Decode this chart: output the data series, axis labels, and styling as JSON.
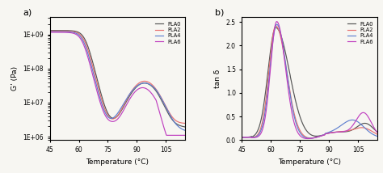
{
  "panel_a": {
    "title": "a)",
    "xlabel": "Temperature (°C)",
    "ylabel": "G’ (Pa)",
    "xlim": [
      45,
      115
    ],
    "xticks": [
      45,
      60,
      75,
      90,
      105
    ],
    "ytick_labels": [
      "1E+06",
      "1E+07",
      "1E+08",
      "1E+09"
    ],
    "colors": {
      "PLA0": "#555555",
      "PLA2": "#e87070",
      "PLA4": "#6080d0",
      "PLA6": "#c040c0"
    },
    "legend_loc": "upper right"
  },
  "panel_b": {
    "title": "b)",
    "xlabel": "Temperature (°C)",
    "ylabel": "tan δ",
    "xlim": [
      45,
      115
    ],
    "xticks": [
      45,
      60,
      75,
      90,
      105
    ],
    "ylim": [
      0,
      2.6
    ],
    "yticks": [
      0.0,
      0.5,
      1.0,
      1.5,
      2.0,
      2.5
    ],
    "colors": {
      "PLA0": "#555555",
      "PLA2": "#e87070",
      "PLA4": "#6080d0",
      "PLA6": "#c040c0"
    },
    "legend_loc": "upper right"
  },
  "bg_color": "#f7f6f2",
  "linewidth": 0.85
}
